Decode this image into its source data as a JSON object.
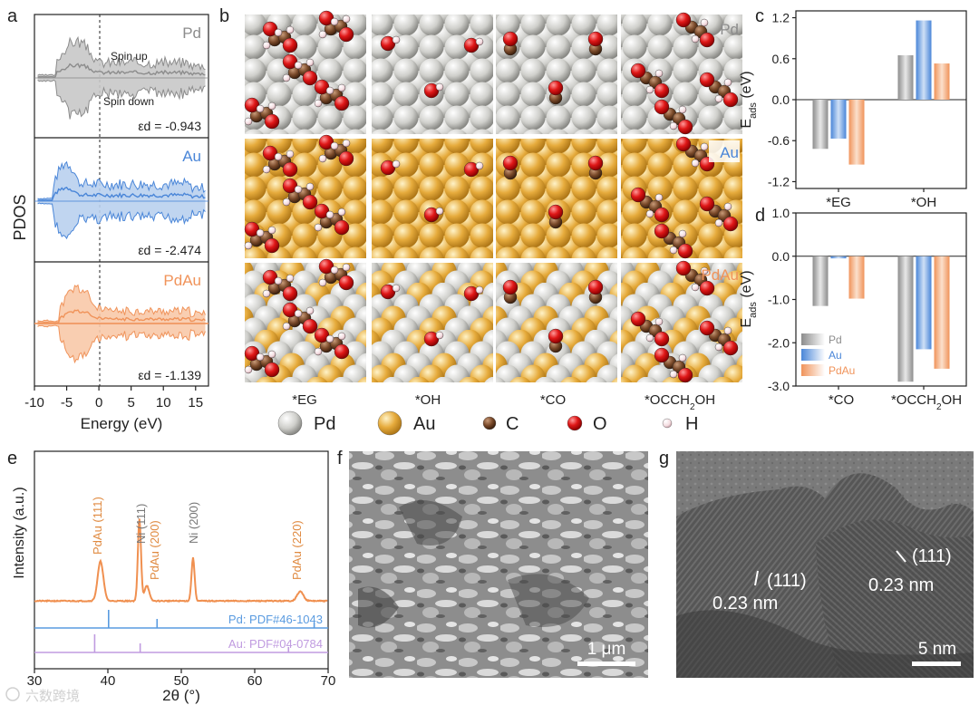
{
  "watermark": "六数跨境",
  "panel_labels": [
    "a",
    "b",
    "c",
    "d",
    "e",
    "f",
    "g"
  ],
  "colors": {
    "pd": "#8c8c8c",
    "au": "#4a86d8",
    "pdau": "#f0935a",
    "pd_atom": "#c8c8c4",
    "au_atom": "#e0a83a",
    "c_atom": "#7a4a2a",
    "o_atom": "#e01818",
    "h_atom": "#f4dce0",
    "xrd_line": "#f09050",
    "ref_pd": "#5a9be0",
    "ref_au": "#c09be0"
  },
  "panel_a": {
    "ylabel": "PDOS",
    "xlabel": "Energy (eV)",
    "x_ticks": [
      "-10",
      "-5",
      "0",
      "5",
      "10",
      "15"
    ],
    "x_range": [
      -10,
      17
    ],
    "subpanels": [
      {
        "name": "Pd",
        "ed": "εd = -0.943",
        "spin_up": "Spin up",
        "spin_down": "Spin down"
      },
      {
        "name": "Au",
        "ed": "εd = -2.474"
      },
      {
        "name": "PdAu",
        "ed": "εd = -1.139"
      }
    ]
  },
  "panel_b": {
    "columns": [
      "*EG",
      "*OH",
      "*CO",
      "*OCCH2OH"
    ],
    "rows": [
      "Pd",
      "Au",
      "PdAu"
    ],
    "legend": [
      {
        "key": "pd",
        "label": "Pd"
      },
      {
        "key": "au",
        "label": "Au"
      },
      {
        "key": "c",
        "label": "C"
      },
      {
        "key": "o",
        "label": "O"
      },
      {
        "key": "h",
        "label": "H"
      }
    ]
  },
  "chart_data": [
    {
      "panel": "c",
      "type": "bar",
      "ylabel": "E_ads (eV)",
      "categories": [
        "*EG",
        "*OH"
      ],
      "ylim": [
        -1.3,
        1.3
      ],
      "y_ticks": [
        "1.2",
        "0.6",
        "0.0",
        "-0.6",
        "-1.2"
      ],
      "series": [
        {
          "name": "Pd",
          "values": [
            -0.72,
            0.65
          ]
        },
        {
          "name": "Au",
          "values": [
            -0.57,
            1.16
          ]
        },
        {
          "name": "PdAu",
          "values": [
            -0.95,
            0.53
          ]
        }
      ]
    },
    {
      "panel": "d",
      "type": "bar",
      "ylabel": "E_ads (eV)",
      "categories": [
        "*CO",
        "*OCCH2OH"
      ],
      "ylim": [
        -3.0,
        1.0
      ],
      "y_ticks": [
        "1.0",
        "0.0",
        "-1.0",
        "-2.0",
        "-3.0"
      ],
      "legend": [
        "Pd",
        "Au",
        "PdAu"
      ],
      "series": [
        {
          "name": "Pd",
          "values": [
            -1.15,
            -2.9
          ]
        },
        {
          "name": "Au",
          "values": [
            -0.05,
            -2.15
          ]
        },
        {
          "name": "PdAu",
          "values": [
            -0.98,
            -2.6
          ]
        }
      ]
    },
    {
      "panel": "e",
      "type": "line",
      "xlabel": "2θ (°)",
      "ylabel": "Intensity (a.u.)",
      "xlim": [
        30,
        70
      ],
      "x_ticks": [
        "30",
        "40",
        "50",
        "60",
        "70"
      ],
      "peaks": [
        {
          "label": "PdAu (111)",
          "x": 39.0,
          "h": 0.46,
          "w": 0.55,
          "kind": "pdau"
        },
        {
          "label": "Ni (111)",
          "x": 44.3,
          "h": 0.95,
          "w": 0.3,
          "kind": "ni"
        },
        {
          "label": "PdAu (200)",
          "x": 45.3,
          "h": 0.18,
          "w": 0.45,
          "kind": "pdau"
        },
        {
          "label": "Ni (200)",
          "x": 51.6,
          "h": 0.5,
          "w": 0.3,
          "kind": "ni"
        },
        {
          "label": "PdAu (220)",
          "x": 66.2,
          "h": 0.11,
          "w": 0.6,
          "kind": "pdau"
        }
      ],
      "references": [
        {
          "label": "Pd: PDF#46-1043",
          "positions": [
            40.1,
            46.7,
            68.1
          ],
          "heights": [
            1.0,
            0.5,
            0.3
          ]
        },
        {
          "label": "Au: PDF#04-0784",
          "positions": [
            38.2,
            44.4,
            64.6
          ],
          "heights": [
            1.0,
            0.5,
            0.3
          ]
        }
      ]
    }
  ],
  "panel_f": {
    "scale_label": "1 μm"
  },
  "panel_g": {
    "scale_label": "5 nm",
    "annotations": [
      {
        "hkl": "(111)",
        "spacing": "0.23 nm"
      },
      {
        "hkl": "(111)",
        "spacing": "0.23 nm"
      }
    ]
  }
}
